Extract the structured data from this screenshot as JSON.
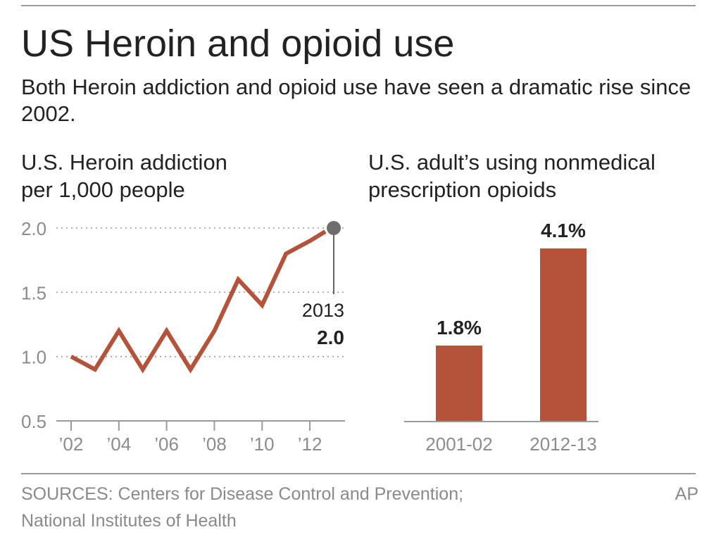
{
  "header": {
    "title": "US Heroin and opioid use",
    "subtitle": "Both Heroin addiction and opioid use have seen a dramatic rise since 2002."
  },
  "colors": {
    "accent": "#b5533a",
    "marker": "#6e6e6e",
    "grid": "#9a9a9a",
    "tick_text": "#8c8c8c"
  },
  "chart_data": [
    {
      "type": "line",
      "title_lines": [
        "U.S. Heroin addiction",
        "per 1,000 people"
      ],
      "x": [
        2002,
        2003,
        2004,
        2005,
        2006,
        2007,
        2008,
        2009,
        2010,
        2011,
        2012,
        2013
      ],
      "values": [
        1.0,
        0.9,
        1.2,
        0.9,
        1.2,
        0.9,
        1.2,
        1.6,
        1.4,
        1.8,
        1.9,
        2.0
      ],
      "x_ticks": [
        2002,
        2004,
        2006,
        2008,
        2010,
        2012
      ],
      "x_tick_labels": [
        "’02",
        "’04",
        "’06",
        "’08",
        "’10",
        "’12"
      ],
      "y_ticks": [
        0.5,
        1.0,
        1.5,
        2.0
      ],
      "y_tick_labels": [
        "0.5",
        "1.0",
        "1.5",
        "2.0"
      ],
      "ylim": [
        0.5,
        2.0
      ],
      "xlim": [
        2002,
        2013
      ],
      "grid": "horizontal dotted",
      "annotation": {
        "x": 2013,
        "y": 2.0,
        "year_label": "2013",
        "value_label": "2.0"
      }
    },
    {
      "type": "bar",
      "title_lines": [
        "U.S. adult’s using nonmedical",
        "prescription opioids"
      ],
      "categories": [
        "2001-02",
        "2012-13"
      ],
      "values": [
        1.8,
        4.1
      ],
      "value_labels": [
        "1.8%",
        "4.1%"
      ],
      "ylim": [
        0,
        4.1
      ],
      "unit": "%"
    }
  ],
  "footer": {
    "sources_lines": [
      "SOURCES: Centers for Disease Control and Prevention;",
      "National Institutes of Health"
    ],
    "credit": "AP"
  }
}
